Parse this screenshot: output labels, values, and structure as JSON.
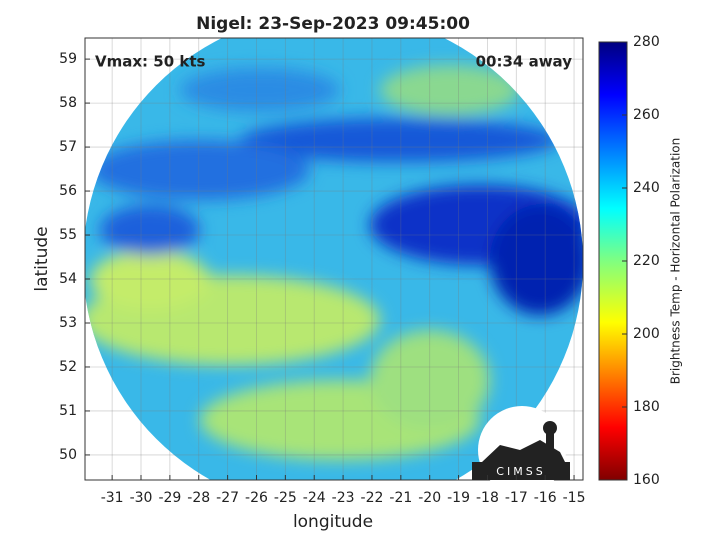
{
  "chart_data": {
    "type": "image",
    "title": "Nigel: 23-Sep-2023 09:45:00",
    "annotations": [
      "Vmax: 50 kts",
      "00:34 away"
    ],
    "xlabel": "longitude",
    "ylabel": "latitude",
    "xlim": [
      -31.94,
      -14.69
    ],
    "xticks": [
      -31,
      -30,
      -29,
      -28,
      -27,
      -26,
      -25,
      -24,
      -23,
      -22,
      -21,
      -20,
      -19,
      -18,
      -17,
      -16,
      -15
    ],
    "ylim": [
      49.43,
      59.48
    ],
    "yticks": [
      50,
      51,
      52,
      53,
      54,
      55,
      56,
      57,
      58,
      59
    ],
    "grid": true,
    "colormap": "jet",
    "colorbar": {
      "label": "Brightness Temp - Horizontal Polarization",
      "lim": [
        160,
        280
      ],
      "ticks": [
        160,
        180,
        200,
        220,
        240,
        260,
        280
      ]
    },
    "logo": "CIMSS"
  }
}
